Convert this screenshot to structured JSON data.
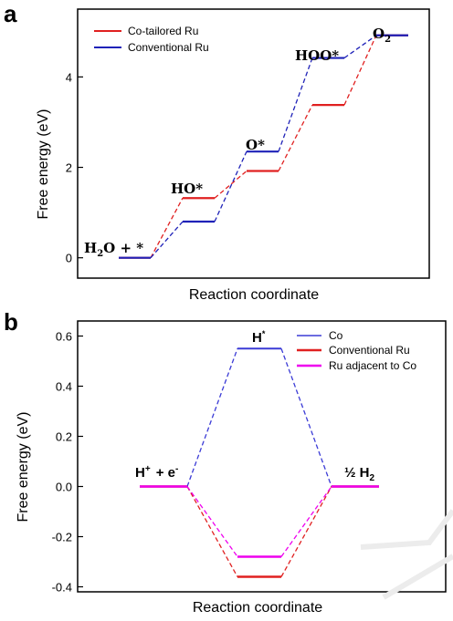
{
  "chart_data": [
    {
      "panel": "a",
      "type": "line",
      "xlabel": "Reaction coordinate",
      "ylabel": "Free energy (eV)",
      "ylim": [
        -0.45,
        5.5
      ],
      "yticks": [
        0,
        2,
        4
      ],
      "steps": [
        "H2O + *",
        "HO*",
        "O*",
        "HOO*",
        "O2"
      ],
      "series": [
        {
          "name": "Co-tailored Ru",
          "color": "#e02020",
          "values": [
            0.0,
            1.32,
            1.92,
            3.38,
            4.92
          ]
        },
        {
          "name": "Conventional Ru",
          "color": "#1f22b8",
          "values": [
            0.0,
            0.8,
            2.35,
            4.42,
            4.92
          ]
        }
      ],
      "legend_position": "top-left"
    },
    {
      "panel": "b",
      "type": "line",
      "xlabel": "Reaction coordinate",
      "ylabel": "Free energy (eV)",
      "ylim": [
        -0.42,
        0.66
      ],
      "yticks": [
        "-0.4",
        "-0.2",
        "0.0",
        "0.2",
        "0.4",
        "0.6"
      ],
      "steps": [
        "H+ + e-",
        "H*",
        "1/2 H2"
      ],
      "series": [
        {
          "name": "Co",
          "color": "#3b3bd6",
          "values": [
            0.0,
            0.55,
            0.0
          ]
        },
        {
          "name": "Conventional Ru",
          "color": "#e02020",
          "values": [
            0.0,
            -0.36,
            0.0
          ]
        },
        {
          "name": "Ru adjacent to Co",
          "color": "#ee00ee",
          "values": [
            0.0,
            -0.28,
            0.0
          ]
        }
      ],
      "legend_position": "top-right"
    }
  ],
  "labels": {
    "panel_a": "a",
    "panel_b": "b",
    "a_h2o": "H",
    "a_h2o_sub": "2",
    "a_h2o_rest": "O + *",
    "a_ho": "HO*",
    "a_o": "O*",
    "a_hoo": "HOO*",
    "a_o2": "O",
    "a_o2_sub": "2",
    "b_hplus": "H",
    "b_hplus_sup": "+",
    "b_e": "+ e",
    "b_e_sup": "-",
    "b_hstar": "H",
    "b_hstar_sup": "*",
    "b_half": "½ H",
    "b_half_sub": "2"
  }
}
